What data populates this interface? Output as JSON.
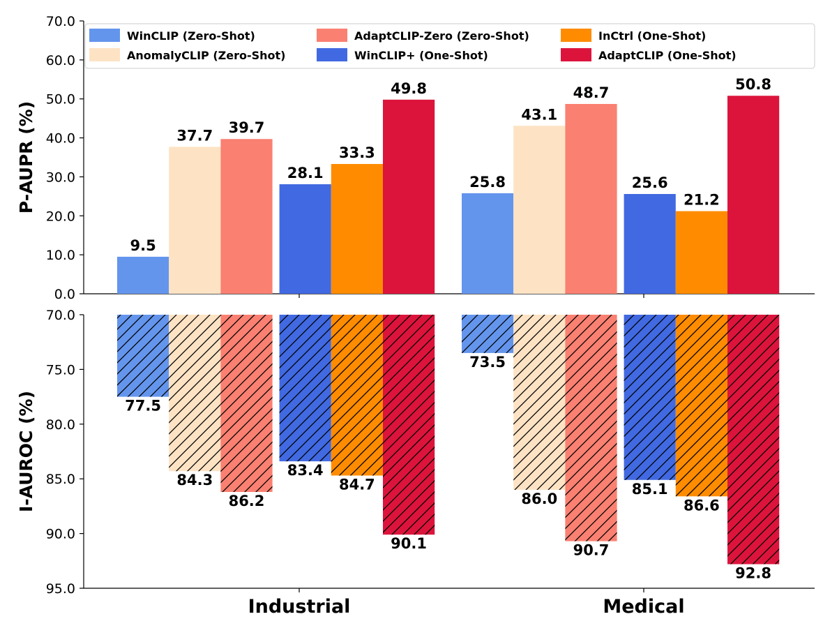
{
  "chart_data": {
    "type": "bar",
    "groups": [
      "Industrial",
      "Medical"
    ],
    "series": [
      {
        "name": "WinCLIP (Zero-Shot)",
        "color": "#6495ED",
        "p_aupr": [
          9.5,
          25.8
        ],
        "i_auroc": [
          77.5,
          73.5
        ]
      },
      {
        "name": "AnomalyCLIP (Zero-Shot)",
        "color": "#FDE3C4",
        "p_aupr": [
          37.7,
          43.1
        ],
        "i_auroc": [
          84.3,
          86.0
        ]
      },
      {
        "name": "AdaptCLIP-Zero  (Zero-Shot)",
        "color": "#FA8072",
        "p_aupr": [
          39.7,
          48.7
        ],
        "i_auroc": [
          86.2,
          90.7
        ]
      },
      {
        "name": "WinCLIP+  (One-Shot)",
        "color": "#4169E1",
        "p_aupr": [
          28.1,
          25.6
        ],
        "i_auroc": [
          83.4,
          85.1
        ]
      },
      {
        "name": "InCtrl  (One-Shot)",
        "color": "#FF8C00",
        "p_aupr": [
          33.3,
          21.2
        ],
        "i_auroc": [
          84.7,
          86.6
        ]
      },
      {
        "name": "AdaptCLIP  (One-Shot)",
        "color": "#DC143C",
        "p_aupr": [
          49.8,
          50.8
        ],
        "i_auroc": [
          90.1,
          92.8
        ]
      }
    ],
    "legend_order": [
      0,
      1,
      2,
      3,
      4,
      5
    ],
    "top_panel": {
      "ylabel": "P-AUPR (%)",
      "ylim": [
        0,
        70
      ],
      "ticks": [
        "0.0",
        "10.0",
        "20.0",
        "30.0",
        "40.0",
        "50.0",
        "60.0",
        "70.0"
      ],
      "tick_values": [
        0,
        10,
        20,
        30,
        40,
        50,
        60,
        70
      ]
    },
    "bottom_panel": {
      "ylabel": "I-AUROC (%)",
      "ylim": [
        70,
        95
      ],
      "inverted": true,
      "hatch": "///",
      "ticks": [
        "70.0",
        "75.0",
        "80.0",
        "85.0",
        "90.0",
        "95.0"
      ],
      "tick_values": [
        70,
        75,
        80,
        85,
        90,
        95
      ]
    },
    "legend_position": "top"
  }
}
